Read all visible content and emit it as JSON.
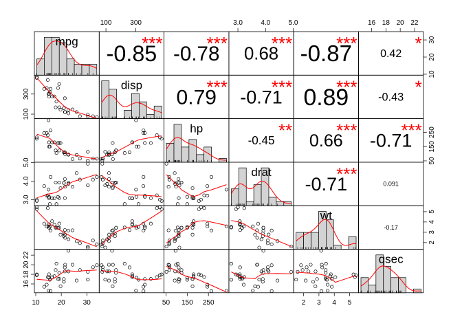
{
  "chart_data": {
    "type": "scatter",
    "variables": [
      "mpg",
      "disp",
      "hp",
      "drat",
      "wt",
      "qsec"
    ],
    "ranges": {
      "mpg": [
        10.4,
        33.9
      ],
      "disp": [
        71.1,
        472
      ],
      "hp": [
        52,
        335
      ],
      "drat": [
        2.76,
        4.93
      ],
      "wt": [
        1.513,
        5.424
      ],
      "qsec": [
        14.5,
        22.9
      ]
    },
    "axis_ticks": {
      "mpg": [
        10,
        20,
        30
      ],
      "disp": [
        100,
        300
      ],
      "hp": [
        50,
        150,
        250
      ],
      "drat": [
        3.0,
        4.0,
        5.0
      ],
      "wt": [
        2,
        3,
        4,
        5
      ],
      "qsec": [
        16,
        18,
        20,
        22
      ]
    },
    "tick_labels": {
      "mpg": [
        "10",
        "20",
        "30"
      ],
      "disp": [
        "100",
        "300"
      ],
      "hp": [
        "50",
        "150",
        "250"
      ],
      "drat": [
        "3.0",
        "4.0",
        "5.0"
      ],
      "wt": [
        "2",
        "3",
        "4",
        "5"
      ],
      "qsec": [
        "16",
        "18",
        "20",
        "22"
      ]
    },
    "correlations": [
      {
        "row": "mpg",
        "col": "disp",
        "r": "-0.85",
        "stars": "***"
      },
      {
        "row": "mpg",
        "col": "hp",
        "r": "-0.78",
        "stars": "***"
      },
      {
        "row": "mpg",
        "col": "drat",
        "r": "0.68",
        "stars": "***"
      },
      {
        "row": "mpg",
        "col": "wt",
        "r": "-0.87",
        "stars": "***"
      },
      {
        "row": "mpg",
        "col": "qsec",
        "r": "0.42",
        "stars": "*"
      },
      {
        "row": "disp",
        "col": "hp",
        "r": "0.79",
        "stars": "***"
      },
      {
        "row": "disp",
        "col": "drat",
        "r": "-0.71",
        "stars": "***"
      },
      {
        "row": "disp",
        "col": "wt",
        "r": "0.89",
        "stars": "***"
      },
      {
        "row": "disp",
        "col": "qsec",
        "r": "-0.43",
        "stars": "*"
      },
      {
        "row": "hp",
        "col": "drat",
        "r": "-0.45",
        "stars": "**"
      },
      {
        "row": "hp",
        "col": "wt",
        "r": "0.66",
        "stars": "***"
      },
      {
        "row": "hp",
        "col": "qsec",
        "r": "-0.71",
        "stars": "***"
      },
      {
        "row": "drat",
        "col": "wt",
        "r": "-0.71",
        "stars": "***"
      },
      {
        "row": "drat",
        "col": "qsec",
        "r": "0.091",
        "stars": ""
      },
      {
        "row": "wt",
        "col": "qsec",
        "r": "-0.17",
        "stars": ""
      }
    ],
    "observations": {
      "mpg": [
        21.0,
        21.0,
        22.8,
        21.4,
        18.7,
        18.1,
        14.3,
        24.4,
        22.8,
        19.2,
        17.8,
        16.4,
        17.3,
        15.2,
        10.4,
        10.4,
        14.7,
        32.4,
        30.4,
        33.9,
        21.5,
        15.5,
        15.2,
        13.3,
        19.2,
        27.3,
        26.0,
        30.4,
        15.8,
        19.7,
        15.0,
        21.4
      ],
      "disp": [
        160,
        160,
        108,
        258,
        360,
        225,
        360,
        146.7,
        140.8,
        167.6,
        167.6,
        275.8,
        275.8,
        275.8,
        472,
        460,
        440,
        78.7,
        75.7,
        71.1,
        120.1,
        318,
        304,
        350,
        400,
        79,
        120.3,
        95.1,
        351,
        145,
        301,
        121
      ],
      "hp": [
        110,
        110,
        93,
        110,
        175,
        105,
        245,
        62,
        95,
        123,
        123,
        180,
        180,
        180,
        205,
        215,
        230,
        66,
        52,
        65,
        97,
        150,
        150,
        245,
        175,
        66,
        91,
        113,
        264,
        175,
        335,
        109
      ],
      "drat": [
        3.9,
        3.9,
        3.85,
        3.08,
        3.15,
        2.76,
        3.21,
        3.69,
        3.92,
        3.92,
        3.92,
        3.07,
        3.07,
        3.07,
        2.93,
        3.0,
        3.23,
        4.08,
        4.93,
        4.22,
        3.7,
        2.76,
        3.15,
        3.73,
        3.08,
        4.08,
        4.43,
        3.77,
        4.22,
        3.62,
        3.54,
        4.11
      ],
      "wt": [
        2.62,
        2.875,
        2.32,
        3.215,
        3.44,
        3.46,
        3.57,
        3.19,
        3.15,
        3.44,
        3.44,
        4.07,
        3.73,
        3.78,
        5.25,
        5.424,
        5.345,
        2.2,
        1.615,
        1.835,
        2.465,
        3.52,
        3.435,
        3.84,
        3.845,
        1.935,
        2.14,
        1.513,
        3.17,
        2.77,
        3.57,
        2.78
      ],
      "qsec": [
        16.46,
        17.02,
        18.61,
        19.44,
        17.02,
        20.22,
        15.84,
        20.0,
        22.9,
        18.3,
        18.9,
        17.4,
        17.6,
        18.0,
        17.98,
        17.82,
        17.42,
        19.47,
        18.52,
        19.9,
        20.01,
        16.87,
        17.3,
        15.41,
        17.05,
        18.9,
        16.7,
        16.9,
        14.5,
        15.5,
        14.6,
        18.6
      ]
    },
    "colors": {
      "stars": "#ff0000",
      "smoother": "#ff0000",
      "histogram_fill": "#d3d3d3",
      "points": "#000000",
      "text": "#000000"
    }
  }
}
